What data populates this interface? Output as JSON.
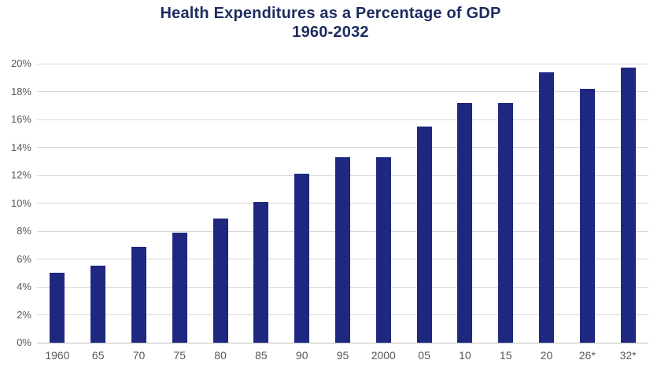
{
  "title": {
    "line1": "Health Expenditures as a Percentage of GDP",
    "line2": "1960-2032"
  },
  "chart_data": {
    "type": "bar",
    "title": "Health Expenditures as a Percentage of GDP 1960-2032",
    "categories": [
      "1960",
      "65",
      "70",
      "75",
      "80",
      "85",
      "90",
      "95",
      "2000",
      "05",
      "10",
      "15",
      "20",
      "26*",
      "32*"
    ],
    "values": [
      5.0,
      5.5,
      6.9,
      7.9,
      8.9,
      10.1,
      12.1,
      13.3,
      13.3,
      15.5,
      17.2,
      17.2,
      19.4,
      18.2,
      19.7
    ],
    "xlabel": "",
    "ylabel": "",
    "ylim": [
      0,
      20
    ],
    "ytick_step": 2,
    "ytick_labels": [
      "0%",
      "2%",
      "4%",
      "6%",
      "8%",
      "10%",
      "12%",
      "14%",
      "16%",
      "18%",
      "20%"
    ],
    "grid": true,
    "legend": false
  },
  "colors": {
    "bar": "#1f2880",
    "title": "#1d2b5f",
    "axis_label": "#595959",
    "gridline": "#d9d9d9",
    "baseline": "#c0c0c0",
    "background": "#ffffff"
  }
}
